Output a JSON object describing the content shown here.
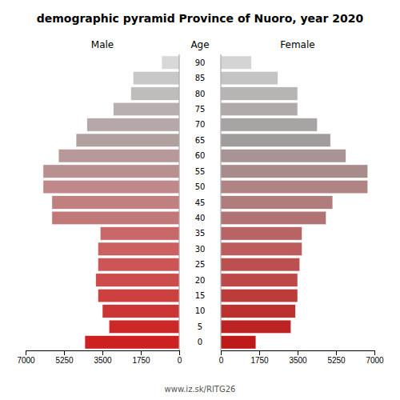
{
  "chart_data": {
    "type": "bar",
    "orientation": "horizontal",
    "title": "demographic pyramid Province of Nuoro, year 2020",
    "ylabel": "Age",
    "annotations": [
      "www.iz.sk/RITG26"
    ],
    "categories": [
      "0",
      "5",
      "10",
      "15",
      "20",
      "25",
      "30",
      "35",
      "40",
      "45",
      "50",
      "55",
      "60",
      "65",
      "70",
      "75",
      "80",
      "85",
      "90"
    ],
    "series": [
      {
        "name": "Male",
        "values": [
          4300,
          3200,
          3500,
          3700,
          3800,
          3700,
          3700,
          3600,
          5800,
          5800,
          6200,
          6200,
          5500,
          4700,
          4200,
          3000,
          2200,
          2100,
          800
        ],
        "colors": [
          "#cd2020",
          "#cc2828",
          "#cc3535",
          "#cc4040",
          "#cc4c4c",
          "#cc5555",
          "#cc6060",
          "#c86868",
          "#c07878",
          "#c08080",
          "#c08888",
          "#b89090",
          "#b89898",
          "#b0a0a0",
          "#b4a8a8",
          "#b8b0b0",
          "#c0bcbc",
          "#c8c8c8",
          "#d8d8d8"
        ]
      },
      {
        "name": "Female",
        "values": [
          1600,
          3200,
          3400,
          3500,
          3500,
          3600,
          3700,
          3700,
          4800,
          5100,
          6700,
          6700,
          5700,
          5000,
          4400,
          3500,
          3500,
          2600,
          1400
        ],
        "colors": [
          "#be1a1a",
          "#bc2424",
          "#bc3030",
          "#bc3c3c",
          "#bc4848",
          "#bc5050",
          "#bc5c5c",
          "#b86464",
          "#b07272",
          "#b07c7c",
          "#b08484",
          "#a88c8c",
          "#a89494",
          "#a09c9c",
          "#a8a4a4",
          "#b0aaaa",
          "#b8b4b4",
          "#c4c4c4",
          "#d4d4d4"
        ]
      }
    ],
    "xlim": [
      0,
      7000
    ],
    "xticks": [
      0,
      1750,
      3500,
      5250,
      7000
    ],
    "grid": false
  }
}
